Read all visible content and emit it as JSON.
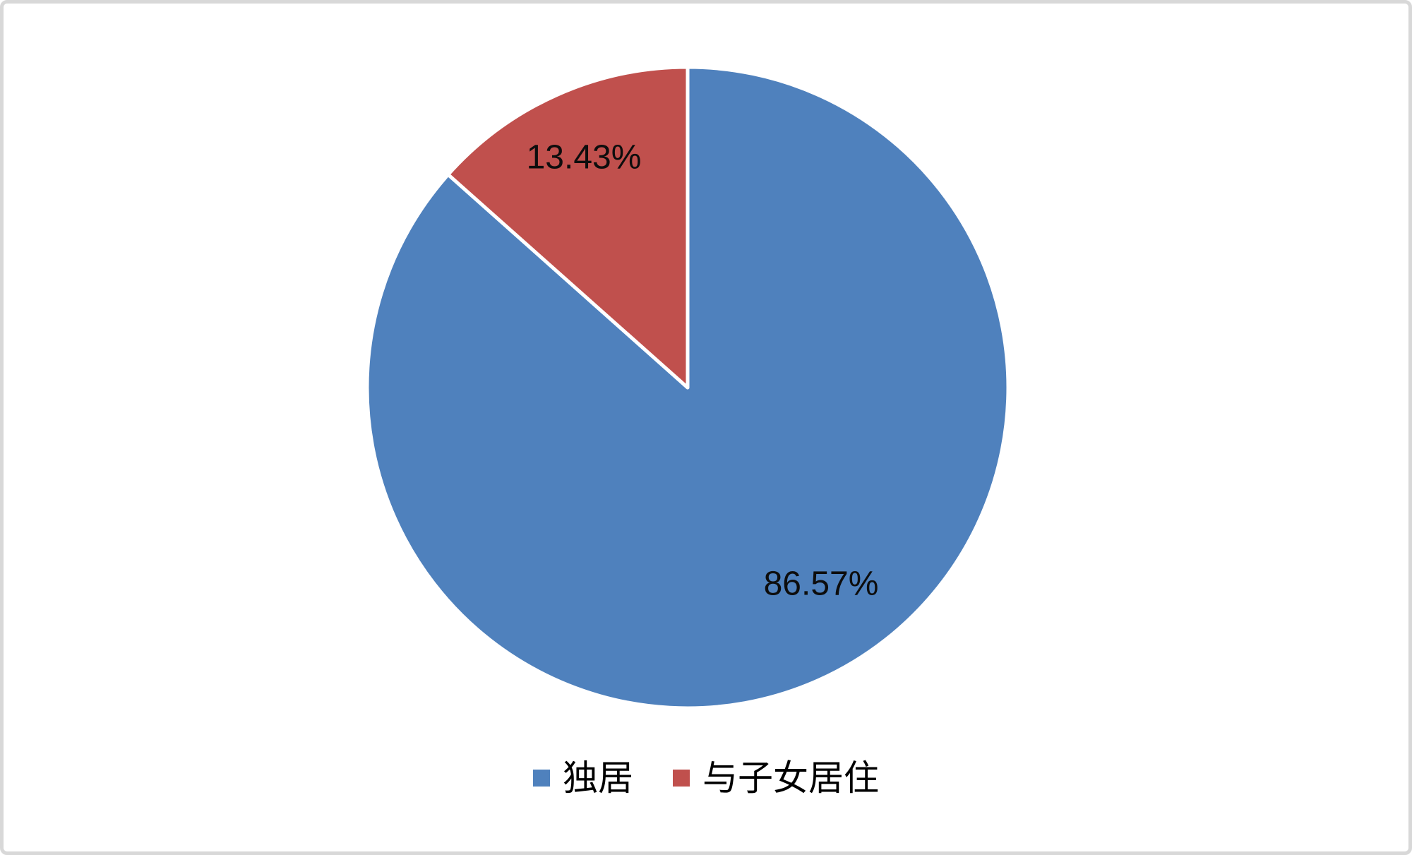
{
  "chart_data": {
    "type": "pie",
    "title": "",
    "start_angle_deg": -90,
    "direction": "clockwise",
    "slice_border_color": "#FFFFFF",
    "background": "#FFFFFF",
    "frame_border_color": "#D8D8D8",
    "legend_position": "bottom",
    "slices": [
      {
        "label": "独居",
        "value": 86.57,
        "display": "86.57%",
        "color": "#4F81BD"
      },
      {
        "label": "与子女居住",
        "value": 13.43,
        "display": "13.43%",
        "color": "#C0504D"
      }
    ]
  },
  "legend": {
    "items": [
      {
        "label": "独居",
        "color": "#4F81BD"
      },
      {
        "label": "与子女居住",
        "color": "#C0504D"
      }
    ]
  }
}
